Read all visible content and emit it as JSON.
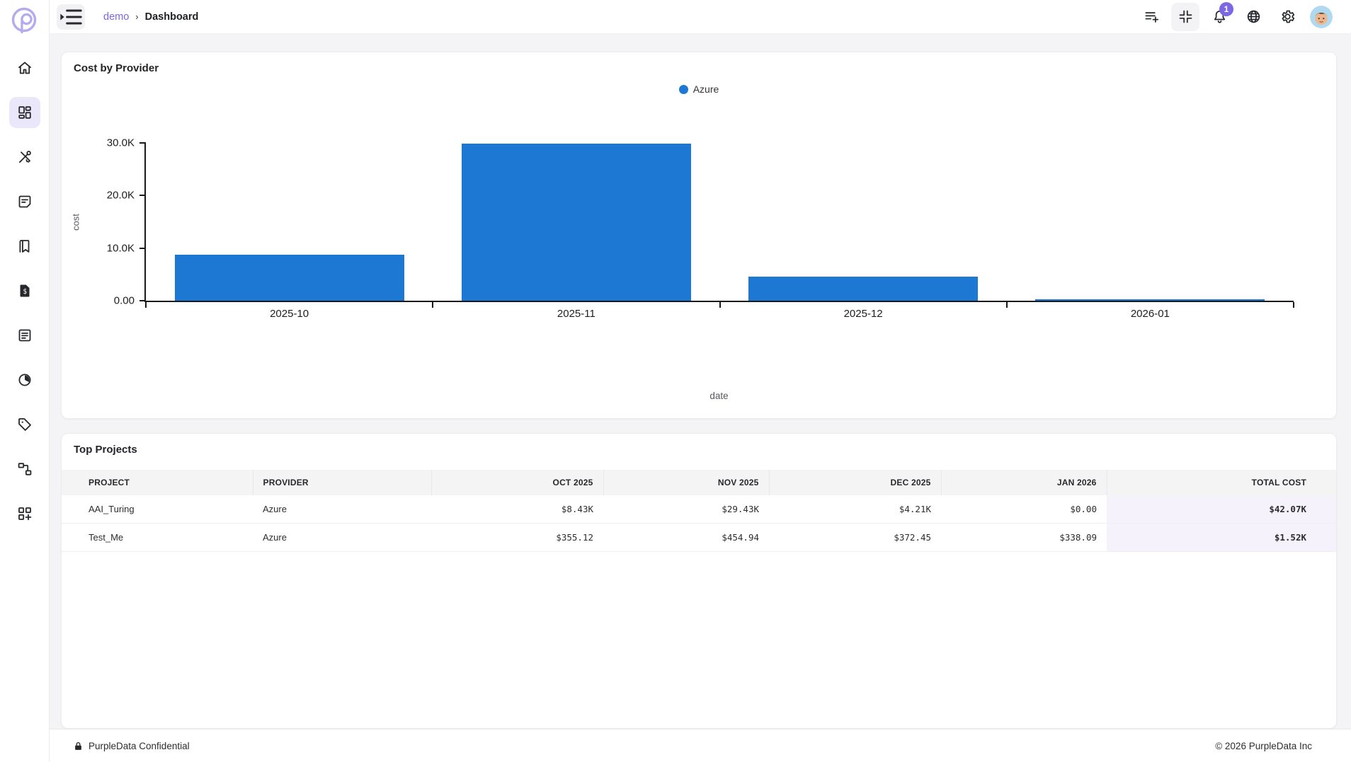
{
  "brand": {
    "accent": "#7c66e4",
    "accent_light": "#eae7fb",
    "logo_color": "#b3abf0"
  },
  "sidebar": {
    "items": [
      {
        "icon": "home",
        "active": false
      },
      {
        "icon": "dashboard",
        "active": true
      },
      {
        "icon": "tools",
        "active": false
      },
      {
        "icon": "note",
        "active": false
      },
      {
        "icon": "book",
        "active": false
      },
      {
        "icon": "invoice",
        "active": false
      },
      {
        "icon": "article",
        "active": false
      },
      {
        "icon": "donut",
        "active": false
      },
      {
        "icon": "tag",
        "active": false
      },
      {
        "icon": "schema",
        "active": false
      },
      {
        "icon": "widgets-add",
        "active": false
      }
    ]
  },
  "header": {
    "menu_icon": "menu-open",
    "breadcrumb": {
      "project": "demo",
      "separator": "›",
      "current": "Dashboard"
    },
    "actions": [
      {
        "icon": "playlist-add",
        "boxed": false
      },
      {
        "icon": "fullscreen-exit",
        "boxed": true
      },
      {
        "icon": "bell",
        "boxed": false,
        "badge": "1"
      },
      {
        "icon": "globe",
        "boxed": false
      },
      {
        "icon": "gear",
        "boxed": false
      },
      {
        "icon": "avatar",
        "boxed": false
      }
    ]
  },
  "chart_card": {
    "title": "Cost by Provider"
  },
  "chart_data": {
    "type": "bar",
    "title": "Cost by Provider",
    "categories": [
      "2025-10",
      "2025-11",
      "2025-12",
      "2026-01"
    ],
    "series": [
      {
        "name": "Azure",
        "color": "#1d78d3",
        "values": [
          8785.12,
          29884.94,
          4582.45,
          338.09
        ]
      }
    ],
    "xlabel": "date",
    "ylabel": "cost",
    "ylim": [
      0,
      30000
    ],
    "yticks": [
      {
        "value": 0,
        "label": "0.00"
      },
      {
        "value": 10000,
        "label": "10.0K"
      },
      {
        "value": 20000,
        "label": "20.0K"
      },
      {
        "value": 30000,
        "label": "30.0K"
      }
    ],
    "legend_position": "top",
    "grid": false
  },
  "table_card": {
    "title": "Top Projects",
    "columns": [
      {
        "key": "project",
        "label": "PROJECT",
        "align": "left",
        "numeric": false,
        "highlight": false,
        "width": "15%"
      },
      {
        "key": "provider",
        "label": "PROVIDER",
        "align": "left",
        "numeric": false,
        "highlight": false,
        "width": "14%"
      },
      {
        "key": "oct",
        "label": "OCT 2025",
        "align": "right",
        "numeric": true,
        "highlight": false,
        "width": "13.5%"
      },
      {
        "key": "nov",
        "label": "NOV 2025",
        "align": "right",
        "numeric": true,
        "highlight": false,
        "width": "13%"
      },
      {
        "key": "dec",
        "label": "DEC 2025",
        "align": "right",
        "numeric": true,
        "highlight": false,
        "width": "13.5%"
      },
      {
        "key": "jan",
        "label": "JAN 2026",
        "align": "right",
        "numeric": true,
        "highlight": false,
        "width": "13%"
      },
      {
        "key": "total",
        "label": "TOTAL COST",
        "align": "right",
        "numeric": true,
        "highlight": true,
        "width": "18%"
      }
    ],
    "rows": [
      {
        "project": "AAI_Turing",
        "provider": "Azure",
        "oct": "$8.43K",
        "nov": "$29.43K",
        "dec": "$4.21K",
        "jan": "$0.00",
        "total": "$42.07K"
      },
      {
        "project": "Test_Me",
        "provider": "Azure",
        "oct": "$355.12",
        "nov": "$454.94",
        "dec": "$372.45",
        "jan": "$338.09",
        "total": "$1.52K"
      }
    ]
  },
  "footer": {
    "confidential": "PurpleData Confidential",
    "copyright": "© 2026 PurpleData Inc"
  }
}
